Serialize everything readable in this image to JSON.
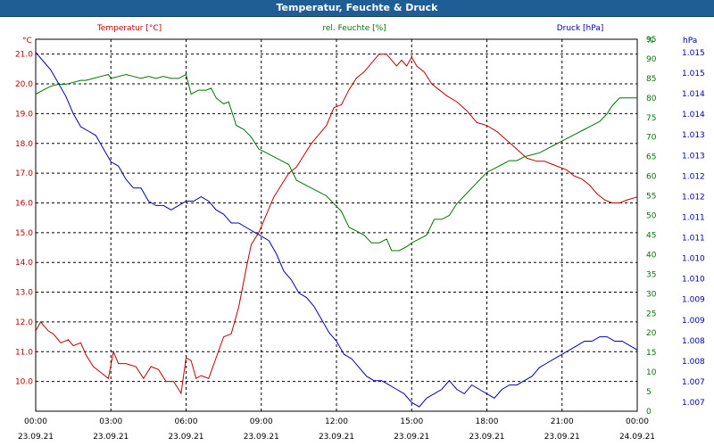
{
  "window": {
    "title": "Temperatur, Feuchte & Druck"
  },
  "chart_data": {
    "type": "line",
    "title": "Temperatur, Feuchte & Druck",
    "grid": true,
    "colors": {
      "temperature": "#c00000",
      "humidity": "#007700",
      "pressure": "#0000b0"
    },
    "x_ticks": [
      {
        "t": 0,
        "time": "00:00",
        "date": "23.09.21"
      },
      {
        "t": 3,
        "time": "03:00",
        "date": "23.09.21"
      },
      {
        "t": 6,
        "time": "06:00",
        "date": "23.09.21"
      },
      {
        "t": 9,
        "time": "09:00",
        "date": "23.09.21"
      },
      {
        "t": 12,
        "time": "12:00",
        "date": "23.09.21"
      },
      {
        "t": 15,
        "time": "15:00",
        "date": "23.09.21"
      },
      {
        "t": 18,
        "time": "18:00",
        "date": "23.09.21"
      },
      {
        "t": 21,
        "time": "21:00",
        "date": "23.09.21"
      },
      {
        "t": 24,
        "time": "00:00",
        "date": "24.09.21"
      }
    ],
    "axes": {
      "temperature": {
        "unit": "°C",
        "ylim": [
          9.0,
          21.5
        ],
        "ticks": [
          "10.0",
          "11.0",
          "12.0",
          "13.0",
          "14.0",
          "15.0",
          "16.0",
          "17.0",
          "18.0",
          "19.0",
          "20.0",
          "21.0"
        ]
      },
      "humidity": {
        "unit": "%",
        "ylim": [
          0,
          95
        ],
        "ticks": [
          "0",
          "5",
          "10",
          "15",
          "20",
          "25",
          "30",
          "35",
          "40",
          "45",
          "50",
          "55",
          "60",
          "65",
          "70",
          "75",
          "80",
          "85",
          "90",
          "95",
          "%"
        ]
      },
      "pressure": {
        "unit": "hPa",
        "ylim": [
          1006.8,
          1015.3
        ],
        "ticks": [
          "1.007",
          "1.007",
          "1.008",
          "1.008",
          "1.009",
          "1.009",
          "1.010",
          "1.010",
          "1.011",
          "1.011",
          "1.012",
          "1.012",
          "1.013",
          "1.013",
          "1.014",
          "1.014",
          "1.015",
          "1.015"
        ]
      }
    },
    "series": [
      {
        "name": "Temperatur [°C]",
        "key": "temperature",
        "x": [
          0,
          0.2,
          0.5,
          0.7,
          1,
          1.3,
          1.5,
          1.8,
          2,
          2.3,
          2.6,
          2.9,
          3.1,
          3.3,
          3.6,
          4,
          4.3,
          4.6,
          4.9,
          5.2,
          5.5,
          5.8,
          6,
          6.2,
          6.4,
          6.6,
          6.9,
          7.2,
          7.5,
          7.8,
          8.1,
          8.4,
          8.6,
          8.9,
          9.2,
          9.5,
          9.8,
          10.1,
          10.4,
          10.7,
          11,
          11.3,
          11.6,
          11.9,
          12.2,
          12.5,
          12.8,
          13.1,
          13.4,
          13.7,
          14,
          14.2,
          14.4,
          14.6,
          14.8,
          15,
          15.2,
          15.5,
          15.8,
          16.1,
          16.4,
          16.8,
          17.2,
          17.6,
          18,
          18.4,
          18.8,
          19.2,
          19.6,
          20,
          20.3,
          20.6,
          20.9,
          21.2,
          21.5,
          21.8,
          22.1,
          22.4,
          22.7,
          23,
          23.3,
          23.6,
          24
        ],
        "values": [
          11.7,
          12.0,
          11.7,
          11.6,
          11.3,
          11.4,
          11.2,
          11.3,
          10.9,
          10.5,
          10.3,
          10.1,
          11.0,
          10.6,
          10.6,
          10.5,
          10.1,
          10.5,
          10.4,
          10.0,
          10.0,
          9.6,
          10.8,
          10.7,
          10.1,
          10.2,
          10.1,
          10.8,
          11.5,
          11.6,
          12.5,
          13.8,
          14.6,
          15.0,
          15.6,
          16.2,
          16.6,
          17.0,
          17.2,
          17.6,
          18.0,
          18.3,
          18.6,
          19.2,
          19.3,
          19.8,
          20.2,
          20.4,
          20.7,
          21.0,
          21.0,
          20.8,
          20.6,
          20.8,
          20.6,
          20.9,
          20.6,
          20.4,
          20.0,
          19.8,
          19.6,
          19.4,
          19.1,
          18.7,
          18.6,
          18.4,
          18.1,
          17.8,
          17.5,
          17.4,
          17.4,
          17.3,
          17.2,
          17.1,
          16.9,
          16.8,
          16.6,
          16.3,
          16.1,
          16.0,
          16.0,
          16.1,
          16.2
        ]
      },
      {
        "name": "rel. Feuchte [%]",
        "key": "humidity",
        "x": [
          0,
          0.3,
          0.6,
          0.9,
          1.2,
          1.5,
          1.8,
          2,
          2.3,
          2.6,
          2.9,
          3,
          3.3,
          3.6,
          3.9,
          4.2,
          4.5,
          4.8,
          5.1,
          5.4,
          5.7,
          6,
          6.2,
          6.5,
          6.8,
          7,
          7.2,
          7.5,
          7.7,
          8,
          8.3,
          8.6,
          8.9,
          9.2,
          9.5,
          9.8,
          10.1,
          10.4,
          10.7,
          11,
          11.3,
          11.6,
          11.9,
          12.2,
          12.5,
          12.8,
          13.1,
          13.4,
          13.7,
          14,
          14.2,
          14.5,
          14.8,
          15,
          15.3,
          15.6,
          15.9,
          16.2,
          16.5,
          16.8,
          17.1,
          17.4,
          17.7,
          18,
          18.3,
          18.6,
          18.9,
          19.2,
          19.5,
          19.8,
          20.1,
          20.4,
          20.7,
          21,
          21.3,
          21.6,
          21.9,
          22.2,
          22.5,
          22.8,
          23,
          23.3,
          23.6,
          24
        ],
        "values": [
          81,
          82,
          83,
          83.5,
          83.5,
          84,
          84.5,
          84.5,
          85,
          85.5,
          86,
          85,
          85.5,
          86,
          85.5,
          85,
          85.5,
          85,
          85.5,
          85,
          85,
          86,
          81,
          82,
          82,
          82.5,
          80,
          78.5,
          79,
          73,
          72,
          70,
          67,
          66,
          65,
          64,
          63,
          59,
          58,
          57,
          56,
          55,
          53,
          51,
          47,
          46,
          45,
          43,
          43,
          44,
          41,
          41,
          42,
          43,
          44,
          45,
          49,
          49,
          50,
          53,
          55,
          57,
          59,
          61,
          62,
          63,
          64,
          64,
          65,
          65.5,
          66,
          67,
          68,
          69,
          70,
          71,
          72,
          73,
          74,
          76,
          78,
          80,
          80,
          80
        ]
      },
      {
        "name": "Druck [hPa]",
        "key": "pressure",
        "x": [
          0,
          0.3,
          0.6,
          0.9,
          1.2,
          1.5,
          1.8,
          2.1,
          2.4,
          2.7,
          3,
          3.3,
          3.6,
          3.9,
          4.2,
          4.5,
          4.8,
          5.1,
          5.4,
          5.7,
          6,
          6.3,
          6.6,
          6.9,
          7.2,
          7.5,
          7.8,
          8.1,
          8.4,
          8.7,
          9,
          9.3,
          9.6,
          9.9,
          10.2,
          10.5,
          10.8,
          11.1,
          11.4,
          11.7,
          12,
          12.3,
          12.6,
          12.9,
          13.2,
          13.5,
          13.8,
          14.1,
          14.4,
          14.7,
          15,
          15.3,
          15.6,
          15.9,
          16.2,
          16.5,
          16.8,
          17.1,
          17.4,
          17.7,
          18,
          18.3,
          18.6,
          18.9,
          19.2,
          19.5,
          19.8,
          20.1,
          20.4,
          20.7,
          21,
          21.3,
          21.6,
          21.9,
          22.2,
          22.5,
          22.8,
          23.1,
          23.4,
          23.7,
          24
        ],
        "values": [
          1015.0,
          1014.8,
          1014.6,
          1014.3,
          1014.0,
          1013.6,
          1013.3,
          1013.2,
          1013.1,
          1012.8,
          1012.5,
          1012.4,
          1012.1,
          1011.9,
          1011.9,
          1011.6,
          1011.5,
          1011.5,
          1011.4,
          1011.5,
          1011.6,
          1011.6,
          1011.7,
          1011.6,
          1011.4,
          1011.3,
          1011.1,
          1011.1,
          1011.0,
          1010.9,
          1010.8,
          1010.7,
          1010.4,
          1010.0,
          1009.8,
          1009.5,
          1009.4,
          1009.2,
          1008.9,
          1008.6,
          1008.4,
          1008.1,
          1008.0,
          1007.8,
          1007.6,
          1007.5,
          1007.5,
          1007.4,
          1007.3,
          1007.2,
          1007.0,
          1006.9,
          1007.1,
          1007.2,
          1007.3,
          1007.5,
          1007.3,
          1007.2,
          1007.4,
          1007.3,
          1007.2,
          1007.1,
          1007.3,
          1007.4,
          1007.4,
          1007.5,
          1007.6,
          1007.8,
          1007.9,
          1008.0,
          1008.1,
          1008.2,
          1008.3,
          1008.4,
          1008.4,
          1008.5,
          1008.5,
          1008.4,
          1008.4,
          1008.3,
          1008.2
        ]
      }
    ]
  }
}
